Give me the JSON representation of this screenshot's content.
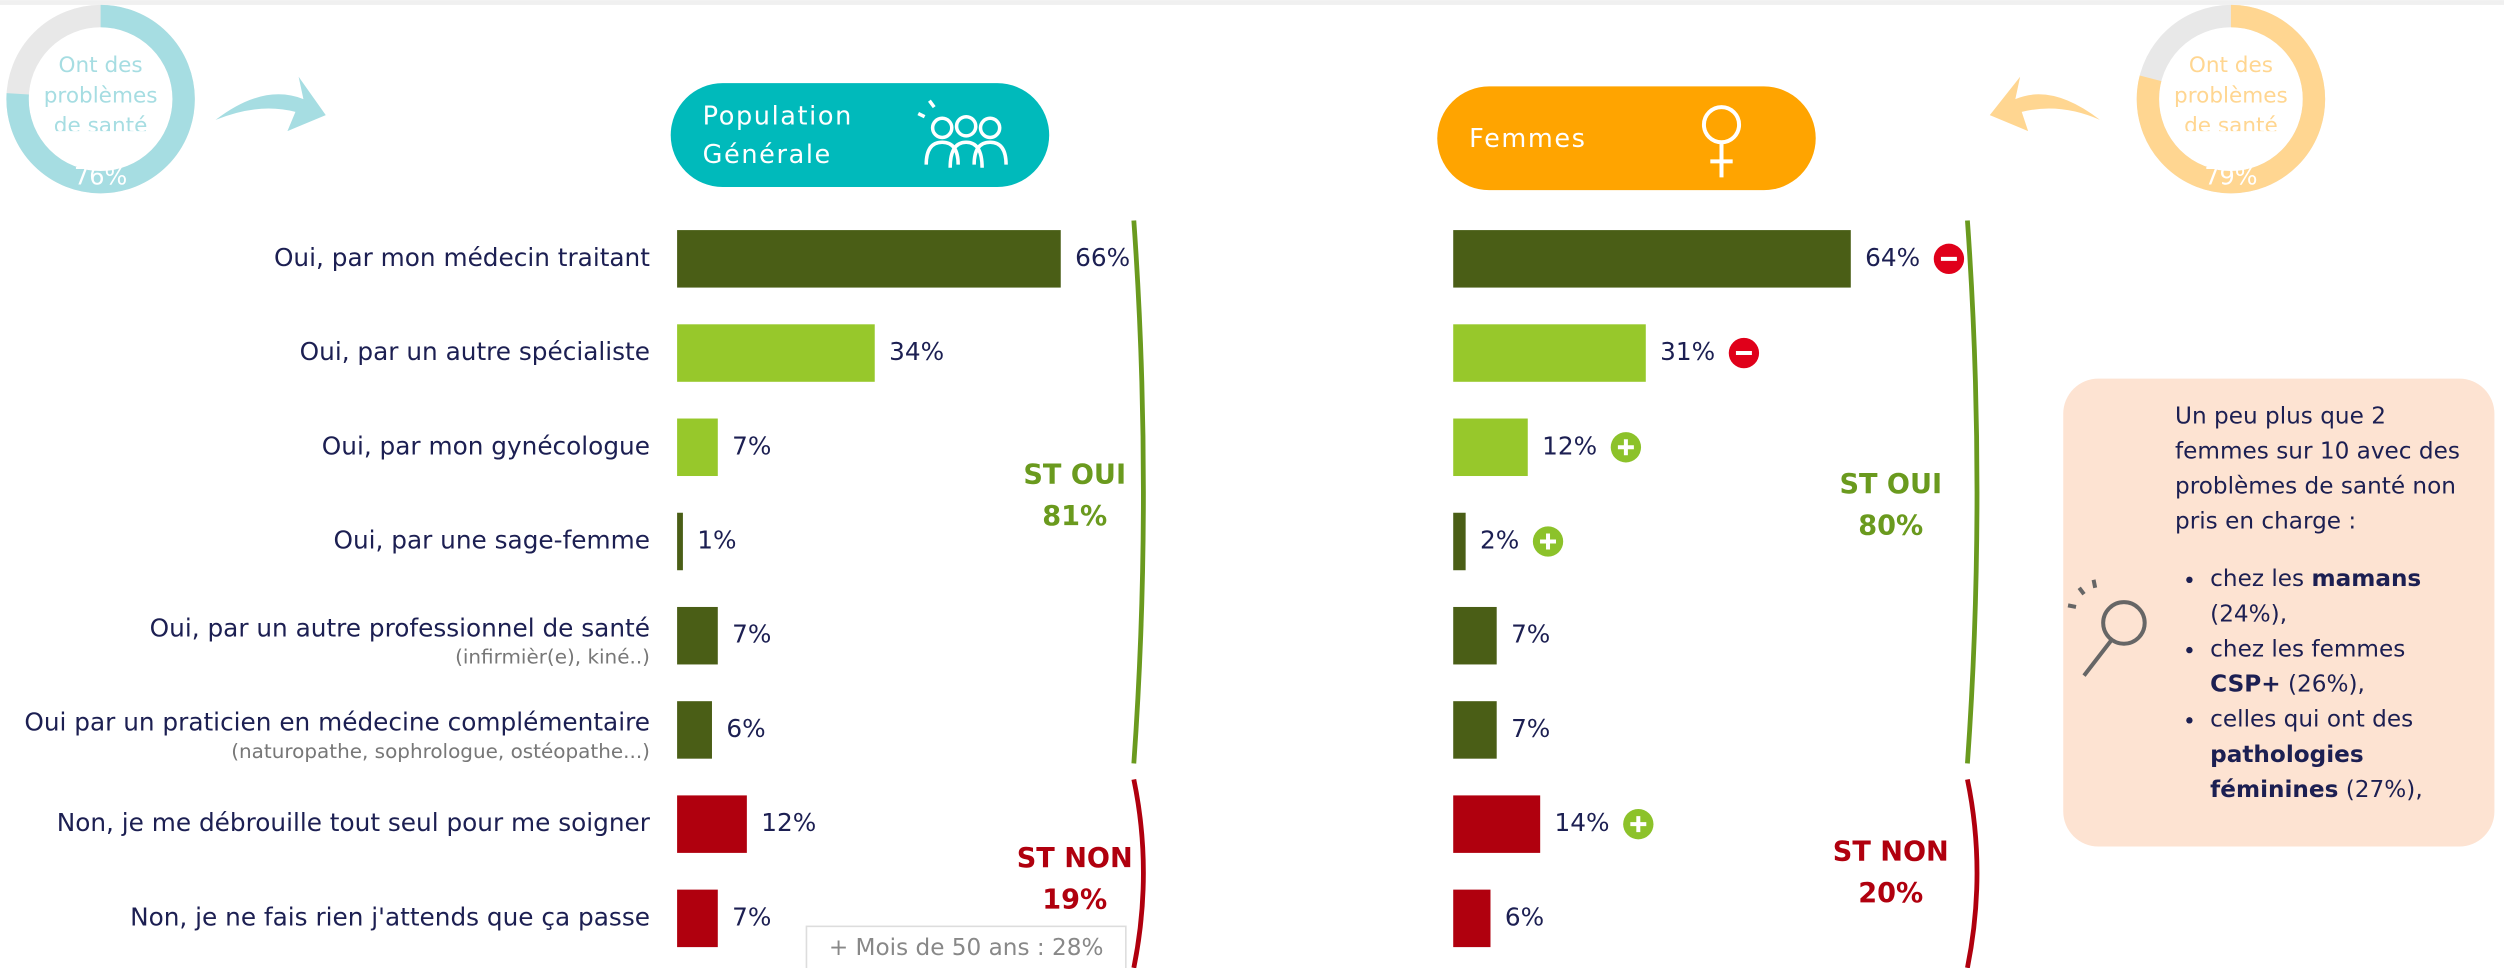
{
  "rows": [
    {
      "label": "Oui, par mon médecin traitant"
    },
    {
      "label": "Oui, par un autre spécialiste"
    },
    {
      "label": "Oui, par mon gynécologue"
    },
    {
      "label": "Oui, par une sage-femme"
    },
    {
      "label": "Oui, par un autre professionnel de santé",
      "note": "(infirmièr(e), kiné..)"
    },
    {
      "label": "Oui par un praticien en médecine complémentaire",
      "note": "(naturopathe, sophrologue, ostéopathe...)"
    },
    {
      "label": "Non, je me débrouille tout seul pour me soigner"
    },
    {
      "label": "Non, je ne fais rien j'attends que ça passe"
    }
  ],
  "chart_data": [
    {
      "type": "barh",
      "title": "Population Générale",
      "header_color": "#00babb",
      "values": [
        66,
        34,
        7,
        1,
        7,
        6,
        12,
        7
      ],
      "value_labels": [
        "66%",
        "34%",
        "7%",
        "1%",
        "7%",
        "6%",
        "12%",
        "7%"
      ],
      "colors": [
        "#4a5e16",
        "#97c82b",
        "#97c82b",
        "#4a5e16",
        "#4a5e16",
        "#4a5e16",
        "#b0000e",
        "#b0000e"
      ],
      "groups": [
        {
          "label": "ST OUI",
          "value": 81,
          "value_label": "81%",
          "color": "#6a9a1e"
        },
        {
          "label": "ST NON",
          "value": 19,
          "value_label": "19%",
          "color": "#b0000e"
        }
      ],
      "donut": {
        "text": "Ont des problèmes de santé",
        "value": 76,
        "value_label": "76%",
        "color": "#a6dde2"
      },
      "annotation": "+ Mois de 50 ans : 28%"
    },
    {
      "type": "barh",
      "title": "Femmes",
      "header_color": "#ffa400",
      "values": [
        64,
        31,
        12,
        2,
        7,
        7,
        14,
        6
      ],
      "value_labels": [
        "64%",
        "31%",
        "12%",
        "2%",
        "7%",
        "7%",
        "14%",
        "6%"
      ],
      "colors": [
        "#4a5e16",
        "#97c82b",
        "#97c82b",
        "#4a5e16",
        "#4a5e16",
        "#4a5e16",
        "#b0000e",
        "#b0000e"
      ],
      "signs": [
        "minus",
        "minus",
        "plus",
        "plus",
        null,
        null,
        "plus",
        null
      ],
      "groups": [
        {
          "label": "ST OUI",
          "value": 80,
          "value_label": "80%",
          "color": "#6a9a1e"
        },
        {
          "label": "ST NON",
          "value": 20,
          "value_label": "20%",
          "color": "#b0000e"
        }
      ],
      "donut": {
        "text": "Ont des problèmes de santé",
        "value": 79,
        "value_label": "79%",
        "color": "#ffd691"
      }
    }
  ],
  "callout": {
    "intro": "Un peu plus que 2 femmes sur 10 avec des problèmes de santé non pris en charge :",
    "items": [
      {
        "before": "chez les",
        "bold": "mamans",
        "after": "(24%),"
      },
      {
        "before": "chez les  femmes",
        "bold": "CSP+",
        "after": "(26%),"
      },
      {
        "before": "celles qui ont des",
        "bold": "pathologies féminines",
        "after": "(27%),"
      }
    ]
  }
}
